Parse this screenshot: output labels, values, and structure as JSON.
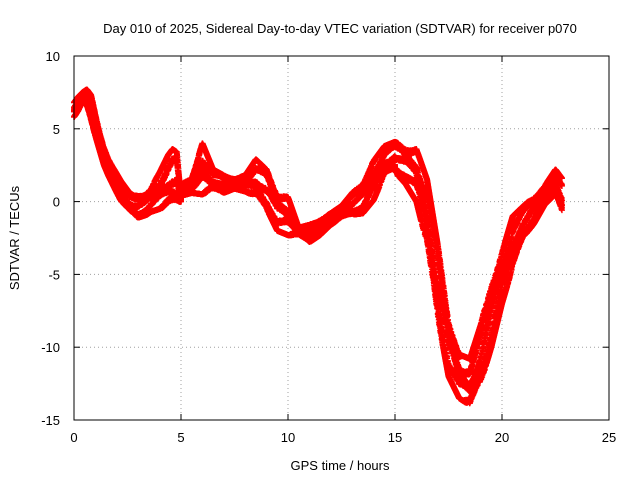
{
  "chart_data": {
    "type": "scatter",
    "title": "Day 010 of 2025, Sidereal Day-to-day VTEC variation (SDTVAR) for receiver p070",
    "xlabel": "GPS time / hours",
    "ylabel": "SDTVAR / TECUs",
    "xlim": [
      0,
      25
    ],
    "ylim": [
      -15,
      10
    ],
    "xticks": [
      0,
      5,
      10,
      15,
      20,
      25
    ],
    "yticks": [
      -15,
      -10,
      -5,
      0,
      5,
      10
    ],
    "grid": true,
    "marker": "+",
    "series": [
      {
        "name": "SDTVAR",
        "color": "#ff0000",
        "bands": [
          {
            "x": [
              0.0,
              0.2,
              0.4,
              0.6,
              0.8,
              1.0,
              1.2,
              1.4,
              1.6,
              1.8,
              2.0,
              2.2,
              2.4,
              2.6,
              2.8,
              3.0,
              3.2,
              3.4,
              3.6,
              3.8,
              4.0,
              4.2,
              4.4,
              4.6,
              4.8,
              5.0
            ],
            "lower": [
              5.8,
              6.2,
              6.8,
              6.5,
              5.5,
              4.5,
              3.5,
              2.5,
              1.8,
              1.2,
              0.6,
              0.0,
              -0.4,
              -0.7,
              -0.9,
              -1.1,
              -1.0,
              -0.9,
              -0.7,
              -0.6,
              -0.5,
              -0.4,
              -0.3,
              -0.2,
              -0.1,
              0.0
            ],
            "upper": [
              6.8,
              7.2,
              7.5,
              7.7,
              7.3,
              6.0,
              4.8,
              3.8,
              3.0,
              2.4,
              1.9,
              1.4,
              1.0,
              0.6,
              0.4,
              0.4,
              0.5,
              0.7,
              1.0,
              1.5,
              2.0,
              2.6,
              3.2,
              3.6,
              3.4,
              0.3
            ]
          },
          {
            "x": [
              5.0,
              5.5,
              6.0,
              6.5,
              7.0,
              7.5,
              8.0,
              8.5,
              9.0,
              9.5,
              10.0,
              10.5,
              11.0,
              11.5,
              12.0,
              12.5,
              13.0,
              13.5,
              14.0,
              14.5,
              15.0
            ],
            "lower": [
              0.4,
              0.6,
              0.5,
              0.8,
              0.6,
              0.9,
              0.7,
              0.3,
              -0.5,
              -2.0,
              -2.3,
              -2.3,
              -2.8,
              -2.3,
              -1.6,
              -1.1,
              -0.9,
              -0.8,
              0.1,
              1.8,
              2.2
            ],
            "upper": [
              1.2,
              1.7,
              4.0,
              2.2,
              1.8,
              1.6,
              1.8,
              2.9,
              2.2,
              0.6,
              0.3,
              -1.8,
              -1.6,
              -1.2,
              -0.8,
              -0.3,
              0.6,
              1.4,
              2.8,
              3.8,
              4.1
            ]
          },
          {
            "x": [
              15.0,
              15.5,
              16.0,
              16.5,
              17.0,
              17.5,
              18.0,
              18.5,
              19.0,
              19.5,
              20.0,
              20.5,
              21.0,
              21.5,
              22.0,
              22.5,
              22.8
            ],
            "lower": [
              2.0,
              1.2,
              0.0,
              -3.0,
              -8.0,
              -12.0,
              -13.5,
              -14.0,
              -12.5,
              -10.0,
              -7.0,
              -4.5,
              -2.5,
              -1.5,
              -0.2,
              0.5,
              -0.8
            ],
            "upper": [
              4.1,
              3.8,
              3.6,
              1.5,
              -3.0,
              -8.0,
              -10.5,
              -10.8,
              -8.5,
              -5.5,
              -3.5,
              -1.0,
              -0.3,
              0.4,
              1.1,
              2.2,
              1.6
            ]
          }
        ]
      }
    ]
  }
}
